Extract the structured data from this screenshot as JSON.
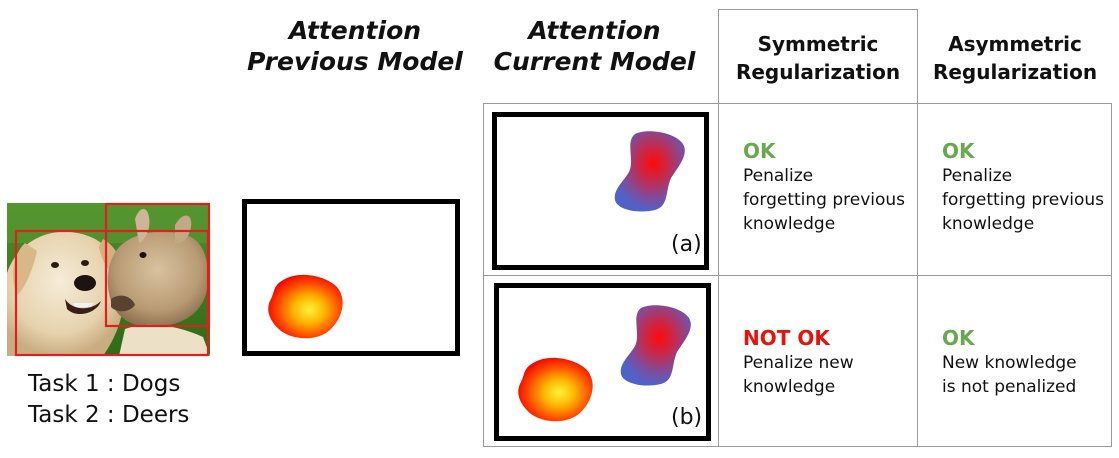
{
  "columns": {
    "prev_title_line1": "Attention",
    "prev_title_line2": "Previous Model",
    "curr_title_line1": "Attention",
    "curr_title_line2": "Current Model"
  },
  "table": {
    "headers": [
      {
        "line1": "Symmetric",
        "line2": "Regularization"
      },
      {
        "line1": "Asymmetric",
        "line2": "Regularization"
      }
    ],
    "rows": [
      {
        "label": "(a)",
        "symmetric": {
          "status": "OK",
          "text": [
            "Penalize",
            "forgetting previous",
            "knowledge"
          ]
        },
        "asymmetric": {
          "status": "OK",
          "text": [
            "Penalize",
            "forgetting previous",
            "knowledge"
          ]
        }
      },
      {
        "label": "(b)",
        "symmetric": {
          "status": "NOT OK",
          "text": [
            "Penalize new",
            "knowledge"
          ]
        },
        "asymmetric": {
          "status": "OK",
          "text": [
            "New knowledge",
            "is not penalized"
          ]
        }
      }
    ]
  },
  "tasks": [
    "Task 1 : Dogs",
    "Task 2 : Deers"
  ],
  "colors": {
    "ok": "#6aa84f",
    "not_ok": "#e8120c",
    "grid": "#9a9a9a",
    "bbox": "#e02020"
  },
  "icons": {
    "photo": "dog-and-deer-photo",
    "warm_blob": "warm-attention-blob",
    "cool_blob": "cool-attention-blob"
  }
}
